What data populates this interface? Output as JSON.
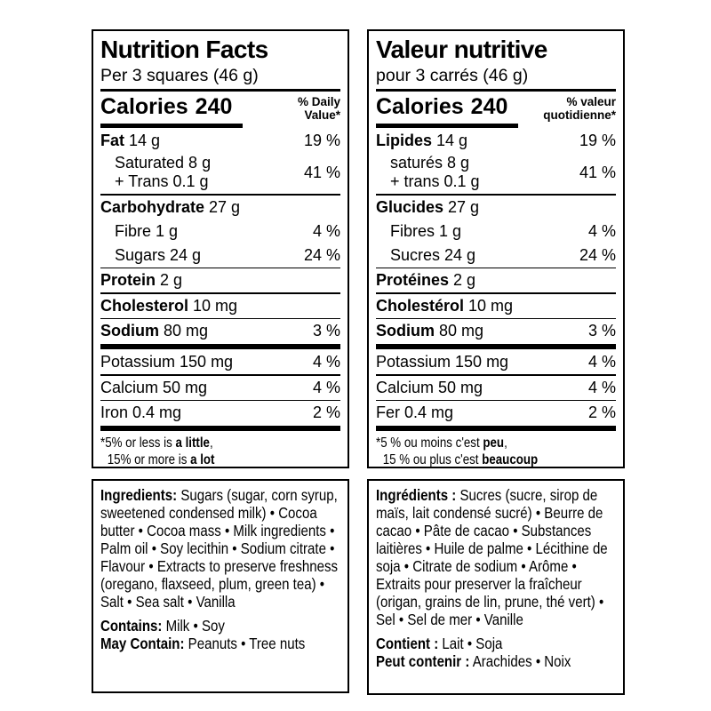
{
  "colors": {
    "ink": "#000000",
    "paper": "#ffffff"
  },
  "panels": [
    {
      "id": "en",
      "title": "Nutrition Facts",
      "serving": "Per 3 squares (46 g)",
      "calories": {
        "label": "Calories",
        "value": "240"
      },
      "dv_header": {
        "line1": "% Daily",
        "line2": "Value*"
      },
      "rows": [
        {
          "kind": "item",
          "bold": "Fat",
          "text": " 14 g",
          "pct": "19 %"
        },
        {
          "kind": "item2",
          "lines": [
            "Saturated 8 g",
            "+ Trans 0.1 g"
          ],
          "pct": "41 %"
        },
        {
          "kind": "rule",
          "weight": "thin"
        },
        {
          "kind": "item",
          "bold": "Carbohydrate",
          "text": " 27 g",
          "pct": ""
        },
        {
          "kind": "item",
          "bold": "",
          "text": "Fibre 1 g",
          "pct": "4 %",
          "indent": true
        },
        {
          "kind": "item",
          "bold": "",
          "text": "Sugars 24 g",
          "pct": "24 %",
          "indent": true
        },
        {
          "kind": "rule",
          "weight": "thin"
        },
        {
          "kind": "item",
          "bold": "Protein",
          "text": " 2 g",
          "pct": ""
        },
        {
          "kind": "rule",
          "weight": "thin"
        },
        {
          "kind": "item",
          "bold": "Cholesterol",
          "text": " 10 mg",
          "pct": ""
        },
        {
          "kind": "rule",
          "weight": "thin"
        },
        {
          "kind": "item",
          "bold": "Sodium",
          "text": " 80 mg",
          "pct": "3 %"
        },
        {
          "kind": "rule",
          "weight": "thick"
        },
        {
          "kind": "item",
          "bold": "",
          "text": "Potassium 150 mg",
          "pct": "4 %"
        },
        {
          "kind": "rule",
          "weight": "thin"
        },
        {
          "kind": "item",
          "bold": "",
          "text": "Calcium 50 mg",
          "pct": "4 %"
        },
        {
          "kind": "rule",
          "weight": "thin"
        },
        {
          "kind": "item",
          "bold": "",
          "text": "Iron 0.4 mg",
          "pct": "2 %"
        },
        {
          "kind": "rule",
          "weight": "thick"
        }
      ],
      "footnote": [
        {
          "text": "*5% or less is ",
          "bold": "a little",
          "post": ",",
          "indent": false
        },
        {
          "text": "15% or more is ",
          "bold": "a lot",
          "post": "",
          "indent": true
        }
      ]
    },
    {
      "id": "fr",
      "title": "Valeur nutritive",
      "serving": "pour 3 carrés (46 g)",
      "calories": {
        "label": "Calories",
        "value": "240"
      },
      "dv_header": {
        "line1": "% valeur",
        "line2": "quotidienne*"
      },
      "rows": [
        {
          "kind": "item",
          "bold": "Lipides",
          "text": " 14 g",
          "pct": "19 %"
        },
        {
          "kind": "item2",
          "lines": [
            "saturés 8 g",
            "+ trans 0.1 g"
          ],
          "pct": "41 %"
        },
        {
          "kind": "rule",
          "weight": "thin"
        },
        {
          "kind": "item",
          "bold": "Glucides",
          "text": " 27 g",
          "pct": ""
        },
        {
          "kind": "item",
          "bold": "",
          "text": "Fibres 1 g",
          "pct": "4 %",
          "indent": true
        },
        {
          "kind": "item",
          "bold": "",
          "text": "Sucres 24 g",
          "pct": "24 %",
          "indent": true
        },
        {
          "kind": "rule",
          "weight": "thin"
        },
        {
          "kind": "item",
          "bold": "Protéines",
          "text": " 2 g",
          "pct": ""
        },
        {
          "kind": "rule",
          "weight": "thin"
        },
        {
          "kind": "item",
          "bold": "Cholestérol",
          "text": " 10 mg",
          "pct": ""
        },
        {
          "kind": "rule",
          "weight": "thin"
        },
        {
          "kind": "item",
          "bold": "Sodium",
          "text": " 80 mg",
          "pct": "3 %"
        },
        {
          "kind": "rule",
          "weight": "thick"
        },
        {
          "kind": "item",
          "bold": "",
          "text": "Potassium 150 mg",
          "pct": "4 %"
        },
        {
          "kind": "rule",
          "weight": "thin"
        },
        {
          "kind": "item",
          "bold": "",
          "text": "Calcium 50 mg",
          "pct": "4 %"
        },
        {
          "kind": "rule",
          "weight": "thin"
        },
        {
          "kind": "item",
          "bold": "",
          "text": "Fer 0.4 mg",
          "pct": "2 %"
        },
        {
          "kind": "rule",
          "weight": "thick"
        }
      ],
      "footnote": [
        {
          "text": "*5 % ou moins c'est ",
          "bold": "peu",
          "post": ",",
          "indent": false
        },
        {
          "text": "15 % ou plus c'est ",
          "bold": "beaucoup",
          "post": "",
          "indent": true
        }
      ]
    }
  ],
  "ingredients": [
    {
      "id": "en",
      "paragraphs": [
        {
          "bold": "Ingredients:",
          "text": " Sugars (sugar, corn syrup, sweetened condensed milk) • Cocoa butter • Cocoa mass • Milk ingredients • Palm oil • Soy lecithin • Sodium citrate • Flavour • Extracts to preserve freshness (oregano, flaxseed, plum, green tea) • Salt • Sea salt • Vanilla",
          "lead": true
        },
        {
          "bold": "Contains:",
          "text": " Milk • Soy"
        },
        {
          "bold": "May Contain:",
          "text": " Peanuts • Tree nuts"
        }
      ]
    },
    {
      "id": "fr",
      "paragraphs": [
        {
          "bold": "Ingrédients :",
          "text": " Sucres (sucre, sirop de maïs, lait condensé sucré) • Beurre de cacao • Pâte de cacao • Substances laitières • Huile de palme • Lécithine de soja • Citrate de sodium • Arôme • Extraits pour preserver la fraîcheur (origan, grains de lin, prune, thé vert) • Sel • Sel de mer • Vanille",
          "lead": true
        },
        {
          "bold": "Contient :",
          "text": " Lait • Soja"
        },
        {
          "bold": "Peut contenir :",
          "text": " Arachides • Noix"
        }
      ]
    }
  ]
}
